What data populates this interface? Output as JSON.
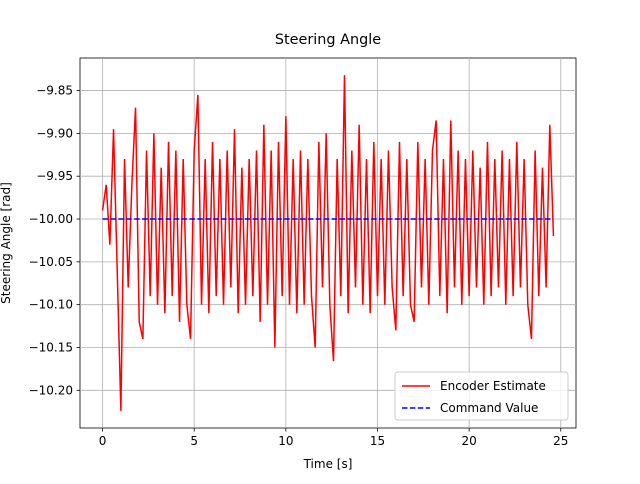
{
  "chart_data": {
    "type": "line",
    "title": "Steering Angle",
    "xlabel": "Time [s]",
    "ylabel": "Steering Angle [rad]",
    "xlim": [
      -1.23,
      25.83
    ],
    "ylim": [
      -10.244,
      -9.812
    ],
    "xticks": [
      0,
      5,
      10,
      15,
      20,
      25
    ],
    "yticks": [
      {
        "value": -9.85,
        "label": "−9.85"
      },
      {
        "value": -9.9,
        "label": "−9.90"
      },
      {
        "value": -9.95,
        "label": "−9.95"
      },
      {
        "value": -10.0,
        "label": "−10.00"
      },
      {
        "value": -10.05,
        "label": "−10.05"
      },
      {
        "value": -10.1,
        "label": "−10.10"
      },
      {
        "value": -10.15,
        "label": "−10.15"
      },
      {
        "value": -10.2,
        "label": "−10.20"
      }
    ],
    "grid": true,
    "legend": "lower right",
    "series": [
      {
        "name": "Encoder Estimate",
        "color": "#ff0000",
        "dash": false,
        "x": [
          0,
          0.2,
          0.4,
          0.6,
          0.8,
          1.0,
          1.2,
          1.4,
          1.6,
          1.8,
          2.0,
          2.2,
          2.4,
          2.6,
          2.8,
          3.0,
          3.2,
          3.4,
          3.6,
          3.8,
          4.0,
          4.2,
          4.4,
          4.6,
          4.8,
          5.0,
          5.2,
          5.4,
          5.6,
          5.8,
          6.0,
          6.2,
          6.4,
          6.6,
          6.8,
          7.0,
          7.2,
          7.4,
          7.6,
          7.8,
          8.0,
          8.2,
          8.4,
          8.6,
          8.8,
          9.0,
          9.2,
          9.4,
          9.6,
          9.8,
          10.0,
          10.2,
          10.4,
          10.6,
          10.8,
          11.0,
          11.2,
          11.4,
          11.6,
          11.8,
          12.0,
          12.2,
          12.4,
          12.6,
          12.8,
          13.0,
          13.2,
          13.4,
          13.6,
          13.8,
          14.0,
          14.2,
          14.4,
          14.6,
          14.8,
          15.0,
          15.2,
          15.4,
          15.6,
          15.8,
          16.0,
          16.2,
          16.4,
          16.6,
          16.8,
          17.0,
          17.2,
          17.4,
          17.6,
          17.8,
          18.0,
          18.2,
          18.4,
          18.6,
          18.8,
          19.0,
          19.2,
          19.4,
          19.6,
          19.8,
          20.0,
          20.2,
          20.4,
          20.6,
          20.8,
          21.0,
          21.2,
          21.4,
          21.6,
          21.8,
          22.0,
          22.2,
          22.4,
          22.6,
          22.8,
          23.0,
          23.2,
          23.4,
          23.6,
          23.8,
          24.0,
          24.2,
          24.4,
          24.6
        ],
        "values": [
          -9.99,
          -9.96,
          -10.03,
          -9.895,
          -10.06,
          -10.224,
          -9.93,
          -10.08,
          -9.96,
          -9.87,
          -10.12,
          -10.14,
          -9.92,
          -10.09,
          -9.9,
          -10.1,
          -9.94,
          -10.11,
          -9.91,
          -10.09,
          -9.92,
          -10.12,
          -9.93,
          -10.1,
          -10.14,
          -9.92,
          -9.855,
          -10.1,
          -9.93,
          -10.11,
          -9.91,
          -10.09,
          -9.93,
          -10.1,
          -9.92,
          -10.08,
          -9.895,
          -10.11,
          -9.94,
          -10.1,
          -9.93,
          -10.09,
          -9.92,
          -10.12,
          -9.89,
          -10.1,
          -9.92,
          -10.15,
          -9.91,
          -10.09,
          -9.88,
          -10.1,
          -9.93,
          -10.11,
          -9.92,
          -10.1,
          -9.93,
          -10.09,
          -10.15,
          -9.91,
          -10.08,
          -9.9,
          -10.1,
          -10.166,
          -9.93,
          -10.09,
          -9.832,
          -10.11,
          -9.92,
          -10.08,
          -9.89,
          -10.1,
          -9.93,
          -10.11,
          -9.91,
          -10.09,
          -9.93,
          -10.1,
          -9.92,
          -10.08,
          -10.13,
          -9.91,
          -10.09,
          -9.93,
          -10.1,
          -10.12,
          -9.91,
          -10.08,
          -9.93,
          -10.1,
          -9.92,
          -9.885,
          -10.09,
          -9.93,
          -10.11,
          -9.885,
          -10.08,
          -9.92,
          -10.1,
          -9.93,
          -10.09,
          -9.92,
          -10.08,
          -9.94,
          -10.1,
          -9.91,
          -10.09,
          -9.93,
          -10.08,
          -9.92,
          -10.1,
          -9.93,
          -10.09,
          -9.91,
          -10.08,
          -9.93,
          -10.1,
          -10.14,
          -9.92,
          -10.09,
          -9.94,
          -10.08,
          -9.89,
          -10.02
        ]
      },
      {
        "name": "Command Value",
        "color": "#0000ff",
        "dash": true,
        "x": [
          0,
          24.6
        ],
        "values": [
          -10.0,
          -10.0
        ]
      }
    ]
  }
}
